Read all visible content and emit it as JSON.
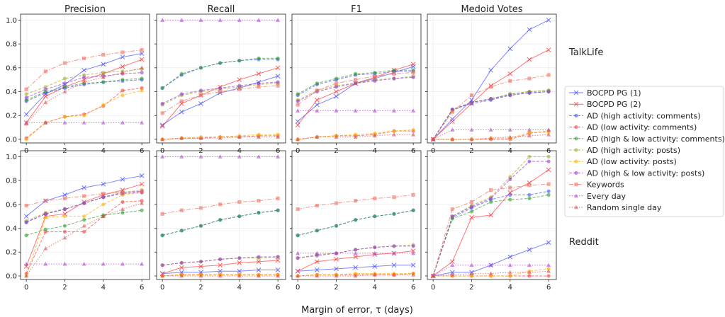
{
  "colors": {
    "bocpd1": "#4a52ff",
    "bocpd2": "#ff3b3b",
    "ad_comments": "#4a52ff",
    "ad_posts": "#ffb000",
    "ad_both": "#2fa02f",
    "keywords": "#f07060",
    "every_day": "#aa44cc",
    "random": "#d45050"
  },
  "chart_data": {
    "type": "line",
    "columns": [
      "Precision",
      "Recall",
      "F1",
      "Medoid Votes"
    ],
    "rows": [
      "TalkLife",
      "Reddit"
    ],
    "xlabel": "Margin of error, τ (days)",
    "x": [
      0,
      1,
      2,
      3,
      4,
      5,
      6
    ],
    "xticks": [
      "0",
      "2",
      "4",
      "6"
    ],
    "yticks": [
      "0.0",
      "0.2",
      "0.4",
      "0.6",
      "0.8",
      "1.0"
    ],
    "ylim": [
      -0.03,
      1.05
    ],
    "legend": [
      {
        "label": "BOCPD PG (1)",
        "key": "bocpd1",
        "marker": "x",
        "dash": "solid"
      },
      {
        "label": "BOCPD PG (2)",
        "key": "bocpd2",
        "marker": "x",
        "dash": "solid"
      },
      {
        "label": "AD (high activity: comments)",
        "key": "ad_hc",
        "marker": "o",
        "dash": "dashed"
      },
      {
        "label": "AD (low activity: comments)",
        "key": "ad_lc",
        "marker": "o",
        "dash": "dashed"
      },
      {
        "label": "AD (high & low activity: comments)",
        "key": "ad_hlc",
        "marker": "o",
        "dash": "dashed"
      },
      {
        "label": "AD (high activity: posts)",
        "key": "ad_hp",
        "marker": "o",
        "dash": "dashed"
      },
      {
        "label": "AD (low activity: posts)",
        "key": "ad_lp",
        "marker": "o",
        "dash": "dashed"
      },
      {
        "label": "AD (high & low activity: posts)",
        "key": "ad_hlp",
        "marker": "o",
        "dash": "dashed"
      },
      {
        "label": "Keywords",
        "key": "keywords",
        "marker": "s",
        "dash": "dashdot"
      },
      {
        "label": "Every day",
        "key": "every_day",
        "marker": "^",
        "dash": "dotted"
      },
      {
        "label": "Random single day",
        "key": "random",
        "marker": "^",
        "dash": "dotted"
      }
    ],
    "series_style": {
      "bocpd1": {
        "color": "#4a52ff"
      },
      "bocpd2": {
        "color": "#ff3b3b"
      },
      "ad_hc": {
        "color": "#4a52ff"
      },
      "ad_lc": {
        "color": "#ff3b3b"
      },
      "ad_hlc": {
        "color": "#2fa02f"
      },
      "ad_hp": {
        "color": "#a8a830"
      },
      "ad_lp": {
        "color": "#ffb000"
      },
      "ad_hlp": {
        "color": "#9a40c8"
      },
      "keywords": {
        "color": "#f07060"
      },
      "every_day": {
        "color": "#aa44cc"
      },
      "random": {
        "color": "#d45050"
      }
    },
    "panels": [
      {
        "row": "TalkLife",
        "column": "Precision",
        "series": {
          "bocpd1": [
            0.21,
            0.38,
            0.46,
            0.58,
            0.63,
            0.69,
            0.72
          ],
          "bocpd2": [
            0.14,
            0.36,
            0.44,
            0.5,
            0.55,
            0.61,
            0.67
          ],
          "ad_hc": [
            0.32,
            0.39,
            0.43,
            0.46,
            0.48,
            0.49,
            0.5
          ],
          "ad_lc": [
            0.01,
            0.14,
            0.19,
            0.21,
            0.28,
            0.41,
            0.43
          ],
          "ad_hlc": [
            0.33,
            0.4,
            0.44,
            0.47,
            0.48,
            0.5,
            0.51
          ],
          "ad_hp": [
            0.38,
            0.44,
            0.51,
            0.54,
            0.56,
            0.57,
            0.59
          ],
          "ad_lp": [
            0.0,
            0.14,
            0.19,
            0.2,
            0.29,
            0.37,
            0.41
          ],
          "ad_hlp": [
            0.35,
            0.42,
            0.47,
            0.52,
            0.53,
            0.55,
            0.56
          ],
          "keywords": [
            0.42,
            0.57,
            0.64,
            0.68,
            0.71,
            0.73,
            0.75
          ],
          "every_day": [
            0.14,
            0.14,
            0.14,
            0.14,
            0.14,
            0.14,
            0.14
          ],
          "random": [
            0.13,
            0.31,
            0.4,
            0.48,
            0.52,
            0.56,
            0.6
          ]
        }
      },
      {
        "row": "TalkLife",
        "column": "Recall",
        "series": {
          "bocpd1": [
            0.12,
            0.23,
            0.3,
            0.39,
            0.43,
            0.48,
            0.53
          ],
          "bocpd2": [
            0.11,
            0.3,
            0.37,
            0.44,
            0.5,
            0.55,
            0.6
          ],
          "ad_hc": [
            0.43,
            0.54,
            0.6,
            0.64,
            0.66,
            0.67,
            0.67
          ],
          "ad_lc": [
            0.0,
            0.01,
            0.01,
            0.02,
            0.02,
            0.03,
            0.03
          ],
          "ad_hlc": [
            0.43,
            0.55,
            0.6,
            0.64,
            0.66,
            0.68,
            0.68
          ],
          "ad_hp": [
            0.29,
            0.37,
            0.4,
            0.42,
            0.44,
            0.46,
            0.47
          ],
          "ad_lp": [
            0.0,
            0.01,
            0.02,
            0.02,
            0.03,
            0.04,
            0.04
          ],
          "ad_hlp": [
            0.3,
            0.38,
            0.41,
            0.43,
            0.45,
            0.47,
            0.48
          ],
          "keywords": [
            0.22,
            0.32,
            0.37,
            0.4,
            0.42,
            0.44,
            0.45
          ],
          "every_day": [
            1.0,
            1.0,
            1.0,
            1.0,
            1.0,
            1.0,
            1.0
          ],
          "random": [
            0.0,
            0.01,
            0.01,
            0.01,
            0.02,
            0.02,
            0.02
          ]
        }
      },
      {
        "row": "TalkLife",
        "column": "F1",
        "series": {
          "bocpd1": [
            0.15,
            0.29,
            0.36,
            0.47,
            0.51,
            0.56,
            0.61
          ],
          "bocpd2": [
            0.12,
            0.33,
            0.4,
            0.47,
            0.52,
            0.58,
            0.63
          ],
          "ad_hc": [
            0.37,
            0.46,
            0.5,
            0.54,
            0.55,
            0.57,
            0.57
          ],
          "ad_lc": [
            0.0,
            0.02,
            0.03,
            0.03,
            0.04,
            0.07,
            0.07
          ],
          "ad_hlc": [
            0.38,
            0.47,
            0.51,
            0.55,
            0.56,
            0.58,
            0.58
          ],
          "ad_hp": [
            0.33,
            0.41,
            0.45,
            0.47,
            0.5,
            0.51,
            0.53
          ],
          "ad_lp": [
            0.0,
            0.02,
            0.03,
            0.04,
            0.05,
            0.07,
            0.08
          ],
          "ad_hlp": [
            0.32,
            0.4,
            0.44,
            0.47,
            0.49,
            0.51,
            0.52
          ],
          "keywords": [
            0.29,
            0.41,
            0.47,
            0.5,
            0.53,
            0.55,
            0.56
          ],
          "every_day": [
            0.24,
            0.24,
            0.24,
            0.24,
            0.24,
            0.24,
            0.24
          ],
          "random": [
            0.0,
            0.02,
            0.02,
            0.02,
            0.03,
            0.04,
            0.04
          ]
        }
      },
      {
        "row": "TalkLife",
        "column": "Medoid Votes",
        "series": {
          "bocpd1": [
            0.0,
            0.17,
            0.33,
            0.58,
            0.76,
            0.92,
            1.0
          ],
          "bocpd2": [
            0.0,
            0.15,
            0.3,
            0.45,
            0.55,
            0.67,
            0.75
          ],
          "ad_hc": [
            0.0,
            0.25,
            0.3,
            0.33,
            0.37,
            0.39,
            0.4
          ],
          "ad_lc": [
            0.0,
            0.0,
            0.0,
            0.0,
            0.0,
            0.05,
            0.07
          ],
          "ad_hlc": [
            0.0,
            0.25,
            0.31,
            0.34,
            0.38,
            0.4,
            0.41
          ],
          "ad_hp": [
            0.0,
            0.24,
            0.31,
            0.34,
            0.38,
            0.4,
            0.41
          ],
          "ad_lp": [
            0.0,
            0.0,
            0.0,
            0.01,
            0.01,
            0.06,
            0.06
          ],
          "ad_hlp": [
            0.0,
            0.25,
            0.31,
            0.34,
            0.37,
            0.39,
            0.4
          ],
          "keywords": [
            0.0,
            0.23,
            0.37,
            0.44,
            0.49,
            0.51,
            0.54
          ],
          "every_day": [
            0.0,
            0.08,
            0.08,
            0.08,
            0.08,
            0.08,
            0.08
          ],
          "random": [
            0.0,
            0.0,
            0.0,
            0.01,
            0.02,
            0.03,
            0.04
          ]
        }
      },
      {
        "row": "Reddit",
        "column": "Precision",
        "series": {
          "bocpd1": [
            0.5,
            0.63,
            0.68,
            0.74,
            0.77,
            0.81,
            0.84
          ],
          "bocpd2": [
            0.08,
            0.5,
            0.52,
            0.62,
            0.68,
            0.72,
            0.77
          ],
          "ad_hc": [
            0.45,
            0.52,
            0.56,
            0.61,
            0.66,
            0.7,
            0.71
          ],
          "ad_lc": [
            0.02,
            0.37,
            0.37,
            0.37,
            0.5,
            0.62,
            0.63
          ],
          "ad_hlc": [
            0.34,
            0.39,
            0.42,
            0.47,
            0.51,
            0.53,
            0.55
          ],
          "ad_hp": [
            0.46,
            0.53,
            0.56,
            0.61,
            0.66,
            0.7,
            0.72
          ],
          "ad_lp": [
            0.0,
            0.49,
            0.5,
            0.5,
            0.6,
            0.68,
            0.7
          ],
          "ad_hlp": [
            0.45,
            0.52,
            0.56,
            0.61,
            0.66,
            0.69,
            0.7
          ],
          "keywords": [
            0.59,
            0.63,
            0.65,
            0.67,
            0.69,
            0.7,
            0.71
          ],
          "every_day": [
            0.1,
            0.1,
            0.1,
            0.1,
            0.1,
            0.1,
            0.1
          ],
          "random": [
            0.0,
            0.23,
            0.32,
            0.42,
            0.5,
            0.56,
            0.61
          ]
        }
      },
      {
        "row": "Reddit",
        "column": "Recall",
        "series": {
          "bocpd1": [
            0.02,
            0.03,
            0.03,
            0.04,
            0.04,
            0.05,
            0.05
          ],
          "bocpd2": [
            0.02,
            0.07,
            0.08,
            0.09,
            0.11,
            0.12,
            0.13
          ],
          "ad_hc": [
            0.34,
            0.38,
            0.42,
            0.47,
            0.5,
            0.53,
            0.55
          ],
          "ad_lc": [
            0.0,
            0.01,
            0.01,
            0.01,
            0.01,
            0.01,
            0.01
          ],
          "ad_hlc": [
            0.34,
            0.38,
            0.42,
            0.47,
            0.5,
            0.53,
            0.55
          ],
          "ad_hp": [
            0.09,
            0.11,
            0.12,
            0.14,
            0.15,
            0.15,
            0.16
          ],
          "ad_lp": [
            0.0,
            0.01,
            0.01,
            0.01,
            0.01,
            0.01,
            0.01
          ],
          "ad_hlp": [
            0.09,
            0.11,
            0.12,
            0.14,
            0.15,
            0.16,
            0.16
          ],
          "keywords": [
            0.52,
            0.55,
            0.57,
            0.6,
            0.62,
            0.63,
            0.65
          ],
          "every_day": [
            1.0,
            1.0,
            1.0,
            1.0,
            1.0,
            1.0,
            1.0
          ],
          "random": [
            0.0,
            0.0,
            0.0,
            0.0,
            0.0,
            0.0,
            0.0
          ]
        }
      },
      {
        "row": "Reddit",
        "column": "F1",
        "series": {
          "bocpd1": [
            0.04,
            0.05,
            0.06,
            0.07,
            0.08,
            0.09,
            0.09
          ],
          "bocpd2": [
            0.04,
            0.12,
            0.14,
            0.16,
            0.18,
            0.19,
            0.21
          ],
          "ad_hc": [
            0.34,
            0.38,
            0.42,
            0.47,
            0.5,
            0.52,
            0.55
          ],
          "ad_lc": [
            0.0,
            0.01,
            0.01,
            0.01,
            0.01,
            0.01,
            0.02
          ],
          "ad_hlc": [
            0.34,
            0.38,
            0.42,
            0.47,
            0.5,
            0.52,
            0.55
          ],
          "ad_hp": [
            0.15,
            0.18,
            0.19,
            0.22,
            0.24,
            0.25,
            0.26
          ],
          "ad_lp": [
            0.0,
            0.01,
            0.01,
            0.02,
            0.02,
            0.02,
            0.02
          ],
          "ad_hlp": [
            0.15,
            0.17,
            0.19,
            0.22,
            0.24,
            0.25,
            0.25
          ],
          "keywords": [
            0.56,
            0.59,
            0.61,
            0.63,
            0.65,
            0.66,
            0.68
          ],
          "every_day": [
            0.19,
            0.19,
            0.19,
            0.19,
            0.19,
            0.19,
            0.19
          ],
          "random": [
            0.0,
            0.0,
            0.0,
            0.0,
            0.01,
            0.01,
            0.01
          ]
        }
      },
      {
        "row": "Reddit",
        "column": "Medoid Votes",
        "series": {
          "bocpd1": [
            0.0,
            0.03,
            0.03,
            0.09,
            0.16,
            0.22,
            0.28
          ],
          "bocpd2": [
            0.0,
            0.12,
            0.49,
            0.51,
            0.7,
            0.78,
            0.89
          ],
          "ad_hc": [
            0.0,
            0.49,
            0.57,
            0.64,
            0.68,
            0.68,
            0.71
          ],
          "ad_lc": [
            0.0,
            0.0,
            0.0,
            0.0,
            0.0,
            0.0,
            0.0
          ],
          "ad_hlc": [
            0.0,
            0.48,
            0.54,
            0.62,
            0.64,
            0.65,
            0.68
          ],
          "ad_hp": [
            0.0,
            0.5,
            0.59,
            0.66,
            0.83,
            1.0,
            1.0
          ],
          "ad_lp": [
            0.0,
            0.0,
            0.0,
            0.0,
            0.0,
            0.04,
            0.06
          ],
          "ad_hlp": [
            0.0,
            0.5,
            0.58,
            0.65,
            0.81,
            0.96,
            0.96
          ],
          "keywords": [
            0.0,
            0.56,
            0.62,
            0.72,
            0.74,
            0.76,
            0.77
          ],
          "every_day": [
            0.0,
            0.09,
            0.09,
            0.09,
            0.09,
            0.09,
            0.09
          ],
          "random": [
            0.0,
            0.01,
            0.02,
            0.02,
            0.03,
            0.03,
            0.04
          ]
        }
      }
    ]
  }
}
